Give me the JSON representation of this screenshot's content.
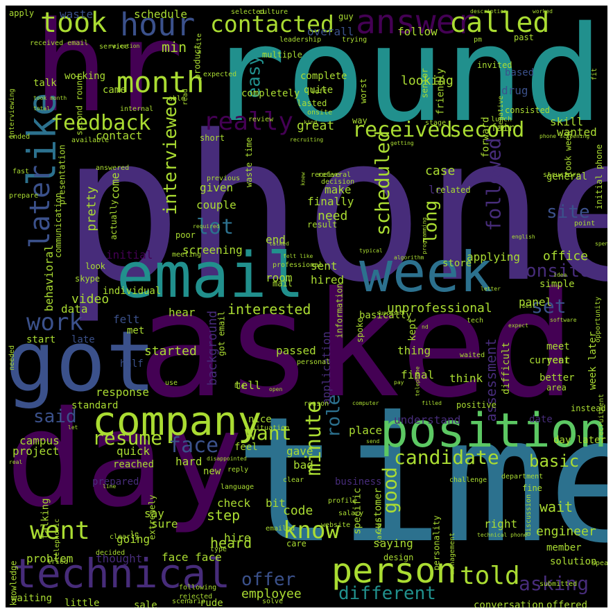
{
  "canvas": {
    "background": "#000000"
  },
  "palette": {
    "purple": "#440154",
    "violet": "#472c7a",
    "indigo": "#3b518b",
    "blue": "#2c718e",
    "teal": "#21908d",
    "green": "#27ad81",
    "lime": "#5cc863",
    "yellowgreen": "#aadc32",
    "yellow": "#fde725"
  },
  "words": [
    {
      "text": "phone",
      "color": "#472c7a"
    },
    {
      "text": "round",
      "color": "#21908d"
    },
    {
      "text": "asked",
      "color": "#440154"
    },
    {
      "text": "time",
      "color": "#2c718e"
    },
    {
      "text": "hr",
      "color": "#440154"
    },
    {
      "text": "day",
      "color": "#440154"
    },
    {
      "text": "email",
      "color": "#21908d"
    },
    {
      "text": "week",
      "color": "#2c718e"
    },
    {
      "text": "got",
      "color": "#3b518b"
    },
    {
      "text": "position",
      "color": "#5cc863"
    },
    {
      "text": "company",
      "color": "#aadc32"
    },
    {
      "text": "technical",
      "color": "#472c7a"
    },
    {
      "text": "person",
      "color": "#aadc32"
    },
    {
      "text": "answer",
      "color": "#440154"
    },
    {
      "text": "took",
      "color": "#aadc32"
    },
    {
      "text": "hour",
      "color": "#3b518b"
    },
    {
      "text": "called",
      "color": "#aadc32"
    },
    {
      "text": "contacted",
      "color": "#aadc32"
    },
    {
      "text": "month",
      "color": "#aadc32"
    },
    {
      "text": "like",
      "color": "#2c718e"
    },
    {
      "text": "later",
      "color": "#3b518b"
    },
    {
      "text": "feedback",
      "color": "#aadc32"
    },
    {
      "text": "received",
      "color": "#aadc32"
    },
    {
      "text": "second",
      "color": "#aadc32"
    },
    {
      "text": "really",
      "color": "#440154"
    },
    {
      "text": "interviewed",
      "color": "#aadc32"
    },
    {
      "text": "work",
      "color": "#3b518b"
    },
    {
      "text": "went",
      "color": "#aadc32"
    },
    {
      "text": "told",
      "color": "#aadc32"
    },
    {
      "text": "know",
      "color": "#aadc32"
    },
    {
      "text": "minute",
      "color": "#aadc32"
    },
    {
      "text": "candidate",
      "color": "#aadc32"
    },
    {
      "text": "good",
      "color": "#aadc32"
    },
    {
      "text": "different",
      "color": "#21908d"
    },
    {
      "text": "asking",
      "color": "#472c7a"
    },
    {
      "text": "said",
      "color": "#3b518b"
    },
    {
      "text": "resume",
      "color": "#aadc32"
    },
    {
      "text": "face",
      "color": "#3b518b"
    },
    {
      "text": "want",
      "color": "#aadc32"
    },
    {
      "text": "role",
      "color": "#2c718e"
    },
    {
      "text": "scheduled",
      "color": "#aadc32"
    },
    {
      "text": "followed",
      "color": "#472c7a"
    },
    {
      "text": "onsite",
      "color": "#472c7a"
    },
    {
      "text": "site",
      "color": "#3b518b"
    },
    {
      "text": "lot",
      "color": "#2c718e"
    },
    {
      "text": "set",
      "color": "#3b518b"
    },
    {
      "text": "long",
      "color": "#aadc32"
    },
    {
      "text": "offer",
      "color": "#3b518b"
    },
    {
      "text": "basic",
      "color": "#aadc32"
    },
    {
      "text": "easy",
      "color": "#21908d"
    },
    {
      "text": "min",
      "color": "#aadc32"
    },
    {
      "text": "interested",
      "color": "#aadc32"
    },
    {
      "text": "unprofessional",
      "color": "#aadc32"
    },
    {
      "text": "assessment",
      "color": "#472c7a"
    },
    {
      "text": "engineer",
      "color": "#aadc32"
    },
    {
      "text": "employee",
      "color": "#aadc32"
    },
    {
      "text": "heard",
      "color": "#aadc32"
    },
    {
      "text": "step",
      "color": "#aadc32"
    },
    {
      "text": "code",
      "color": "#aadc32"
    },
    {
      "text": "wait",
      "color": "#aadc32"
    },
    {
      "text": "waste",
      "color": "#3b518b"
    },
    {
      "text": "schedule",
      "color": "#aadc32"
    },
    {
      "text": "overall",
      "color": "#3b518b"
    },
    {
      "text": "follow",
      "color": "#aadc32"
    },
    {
      "text": "looking",
      "color": "#aadc32"
    },
    {
      "text": "based",
      "color": "#3b518b"
    },
    {
      "text": "drug",
      "color": "#3b518b"
    },
    {
      "text": "skill",
      "color": "#aadc32"
    },
    {
      "text": "wanted",
      "color": "#aadc32"
    },
    {
      "text": "contact",
      "color": "#aadc32"
    },
    {
      "text": "came",
      "color": "#aadc32"
    },
    {
      "text": "working",
      "color": "#aadc32"
    },
    {
      "text": "talk",
      "color": "#aadc32"
    },
    {
      "text": "great",
      "color": "#aadc32"
    },
    {
      "text": "case",
      "color": "#aadc32"
    },
    {
      "text": "level",
      "color": "#472c7a"
    },
    {
      "text": "general",
      "color": "#aadc32"
    },
    {
      "text": "given",
      "color": "#aadc32"
    },
    {
      "text": "couple",
      "color": "#aadc32"
    },
    {
      "text": "make",
      "color": "#aadc32"
    },
    {
      "text": "finally",
      "color": "#aadc32"
    },
    {
      "text": "need",
      "color": "#aadc32"
    },
    {
      "text": "pretty",
      "color": "#aadc32"
    },
    {
      "text": "come",
      "color": "#aadc32"
    },
    {
      "text": "end",
      "color": "#aadc32"
    },
    {
      "text": "screening",
      "color": "#aadc32"
    },
    {
      "text": "initial",
      "color": "#440154"
    },
    {
      "text": "store",
      "color": "#aadc32"
    },
    {
      "text": "applying",
      "color": "#aadc32"
    },
    {
      "text": "office",
      "color": "#aadc32"
    },
    {
      "text": "behavioral",
      "color": "#aadc32"
    },
    {
      "text": "video",
      "color": "#aadc32"
    },
    {
      "text": "sent",
      "color": "#aadc32"
    },
    {
      "text": "hired",
      "color": "#aadc32"
    },
    {
      "text": "room",
      "color": "#aadc32"
    },
    {
      "text": "hear",
      "color": "#aadc32"
    },
    {
      "text": "felt",
      "color": "#3b518b"
    },
    {
      "text": "panel",
      "color": "#aadc32"
    },
    {
      "text": "simple",
      "color": "#aadc32"
    },
    {
      "text": "data",
      "color": "#aadc32"
    },
    {
      "text": "met",
      "color": "#aadc32"
    },
    {
      "text": "start",
      "color": "#aadc32"
    },
    {
      "text": "late",
      "color": "#3b518b"
    },
    {
      "text": "started",
      "color": "#aadc32"
    },
    {
      "text": "passed",
      "color": "#aadc32"
    },
    {
      "text": "thing",
      "color": "#aadc32"
    },
    {
      "text": "difficult",
      "color": "#aadc32"
    },
    {
      "text": "meet",
      "color": "#aadc32"
    },
    {
      "text": "year",
      "color": "#aadc32"
    },
    {
      "text": "week later",
      "color": "#aadc32"
    },
    {
      "text": "better",
      "color": "#aadc32"
    },
    {
      "text": "half",
      "color": "#3b518b"
    },
    {
      "text": "tell",
      "color": "#aadc32"
    },
    {
      "text": "think",
      "color": "#aadc32"
    },
    {
      "text": "response",
      "color": "#aadc32"
    },
    {
      "text": "final",
      "color": "#aadc32"
    },
    {
      "text": "application",
      "color": "#472c7a"
    },
    {
      "text": "background",
      "color": "#472c7a"
    },
    {
      "text": "understand",
      "color": "#472c7a"
    },
    {
      "text": "date",
      "color": "#472c7a"
    },
    {
      "text": "day later",
      "color": "#aadc32"
    },
    {
      "text": "standard",
      "color": "#aadc32"
    },
    {
      "text": "campus",
      "color": "#aadc32"
    },
    {
      "text": "nice",
      "color": "#aadc32"
    },
    {
      "text": "feel",
      "color": "#aadc32"
    },
    {
      "text": "place",
      "color": "#aadc32"
    },
    {
      "text": "project",
      "color": "#aadc32"
    },
    {
      "text": "quick",
      "color": "#aadc32"
    },
    {
      "text": "reached",
      "color": "#aadc32"
    },
    {
      "text": "gave",
      "color": "#aadc32"
    },
    {
      "text": "bad",
      "color": "#aadc32"
    },
    {
      "text": "hard",
      "color": "#aadc32"
    },
    {
      "text": "new",
      "color": "#aadc32"
    },
    {
      "text": "business",
      "color": "#472c7a"
    },
    {
      "text": "prepared",
      "color": "#472c7a"
    },
    {
      "text": "talking",
      "color": "#aadc32"
    },
    {
      "text": "check",
      "color": "#aadc32"
    },
    {
      "text": "bit",
      "color": "#aadc32"
    },
    {
      "text": "specific",
      "color": "#aadc32"
    },
    {
      "text": "customer",
      "color": "#aadc32"
    },
    {
      "text": "say",
      "color": "#aadc32"
    },
    {
      "text": "sure",
      "color": "#aadc32"
    },
    {
      "text": "going",
      "color": "#aadc32"
    },
    {
      "text": "hire",
      "color": "#aadc32"
    },
    {
      "text": "saying",
      "color": "#aadc32"
    },
    {
      "text": "right",
      "color": "#aadc32"
    },
    {
      "text": "problem",
      "color": "#aadc32"
    },
    {
      "text": "thought",
      "color": "#472c7a"
    },
    {
      "text": "face face",
      "color": "#aadc32"
    },
    {
      "text": "sale",
      "color": "#aadc32"
    },
    {
      "text": "rude",
      "color": "#aadc32"
    },
    {
      "text": "little",
      "color": "#aadc32"
    },
    {
      "text": "waiting",
      "color": "#aadc32"
    },
    {
      "text": "conversation",
      "color": "#aadc32"
    },
    {
      "text": "offered",
      "color": "#aadc32"
    },
    {
      "text": "member",
      "color": "#aadc32"
    },
    {
      "text": "apply",
      "color": "#aadc32"
    },
    {
      "text": "selected",
      "color": "#aadc32"
    },
    {
      "text": "culture",
      "color": "#aadc32"
    },
    {
      "text": "worked",
      "color": "#aadc32"
    },
    {
      "text": "description",
      "color": "#aadc32"
    },
    {
      "text": "guy",
      "color": "#aadc32"
    },
    {
      "text": "product",
      "color": "#aadc32"
    },
    {
      "text": "multiple",
      "color": "#aadc32"
    },
    {
      "text": "complete",
      "color": "#aadc32"
    },
    {
      "text": "quite",
      "color": "#aadc32"
    },
    {
      "text": "senior",
      "color": "#aadc32"
    },
    {
      "text": "friendly",
      "color": "#aadc32"
    },
    {
      "text": "invited",
      "color": "#aadc32"
    },
    {
      "text": "past",
      "color": "#aadc32"
    },
    {
      "text": "forward",
      "color": "#aadc32"
    },
    {
      "text": "way",
      "color": "#aadc32"
    },
    {
      "text": "short",
      "color": "#aadc32"
    },
    {
      "text": "recruiting",
      "color": "#aadc32"
    },
    {
      "text": "completely",
      "color": "#aadc32"
    },
    {
      "text": "worst",
      "color": "#aadc32"
    },
    {
      "text": "waste time",
      "color": "#aadc32"
    },
    {
      "text": "interviewing",
      "color": "#aadc32"
    },
    {
      "text": "received email",
      "color": "#aadc32"
    },
    {
      "text": "rejection",
      "color": "#aadc32"
    },
    {
      "text": "second round",
      "color": "#aadc32"
    },
    {
      "text": "took month",
      "color": "#aadc32"
    },
    {
      "text": "total",
      "color": "#aadc32"
    },
    {
      "text": "fair",
      "color": "#aadc32"
    },
    {
      "text": "fit",
      "color": "#aadc32"
    },
    {
      "text": "phone screening",
      "color": "#aadc32"
    },
    {
      "text": "initial phone",
      "color": "#aadc32"
    },
    {
      "text": "professional",
      "color": "#aadc32"
    },
    {
      "text": "mail",
      "color": "#aadc32"
    },
    {
      "text": "look",
      "color": "#aadc32"
    },
    {
      "text": "skype",
      "color": "#aadc32"
    },
    {
      "text": "poor",
      "color": "#aadc32"
    },
    {
      "text": "meeting",
      "color": "#aadc32"
    },
    {
      "text": "presentation",
      "color": "#aadc32"
    },
    {
      "text": "communication",
      "color": "#aadc32"
    },
    {
      "text": "actually",
      "color": "#aadc32"
    },
    {
      "text": "answered",
      "color": "#aadc32"
    },
    {
      "text": "fast",
      "color": "#aadc32"
    },
    {
      "text": "prepare",
      "color": "#aadc32"
    },
    {
      "text": "receive",
      "color": "#aadc32"
    },
    {
      "text": "result",
      "color": "#aadc32"
    },
    {
      "text": "related",
      "color": "#aadc32"
    },
    {
      "text": "required",
      "color": "#aadc32"
    },
    {
      "text": "algorithm",
      "color": "#aadc32"
    },
    {
      "text": "programming",
      "color": "#aadc32"
    },
    {
      "text": "typical",
      "color": "#aadc32"
    },
    {
      "text": "talked",
      "color": "#aadc32"
    },
    {
      "text": "felt like",
      "color": "#aadc32"
    },
    {
      "text": "english",
      "color": "#aadc32"
    },
    {
      "text": "point",
      "color": "#aadc32"
    },
    {
      "text": "spent",
      "color": "#aadc32"
    },
    {
      "text": "idea",
      "color": "#aadc32"
    },
    {
      "text": "best",
      "color": "#aadc32"
    },
    {
      "text": "expect",
      "color": "#aadc32"
    },
    {
      "text": "tech",
      "color": "#aadc32"
    },
    {
      "text": "software",
      "color": "#aadc32"
    },
    {
      "text": "opportunity",
      "color": "#aadc32"
    },
    {
      "text": "basically",
      "color": "#aadc32"
    },
    {
      "text": "information",
      "color": "#aadc32"
    },
    {
      "text": "spoke",
      "color": "#aadc32"
    },
    {
      "text": "supposed",
      "color": "#aadc32"
    },
    {
      "text": "nd",
      "color": "#aadc32"
    },
    {
      "text": "kept",
      "color": "#aadc32"
    },
    {
      "text": "telephone",
      "color": "#aadc32"
    },
    {
      "text": "waited",
      "color": "#aadc32"
    },
    {
      "text": "current",
      "color": "#aadc32"
    },
    {
      "text": "positive",
      "color": "#aadc32"
    },
    {
      "text": "area",
      "color": "#aadc32"
    },
    {
      "text": "got email",
      "color": "#aadc32"
    },
    {
      "text": "personal",
      "color": "#aadc32"
    },
    {
      "text": "use",
      "color": "#aadc32"
    },
    {
      "text": "open",
      "color": "#aadc32"
    },
    {
      "text": "pay",
      "color": "#aadc32"
    },
    {
      "text": "big",
      "color": "#aadc32"
    },
    {
      "text": "reason",
      "color": "#aadc32"
    },
    {
      "text": "computer",
      "color": "#aadc32"
    },
    {
      "text": "filled",
      "color": "#aadc32"
    },
    {
      "text": "instead",
      "color": "#aadc32"
    },
    {
      "text": "recruitment",
      "color": "#aadc32"
    },
    {
      "text": "situation",
      "color": "#aadc32"
    },
    {
      "text": "send",
      "color": "#aadc32"
    },
    {
      "text": "let",
      "color": "#aadc32"
    },
    {
      "text": "real",
      "color": "#aadc32"
    },
    {
      "text": "disappointed",
      "color": "#aadc32"
    },
    {
      "text": "reply",
      "color": "#aadc32"
    },
    {
      "text": "language",
      "color": "#aadc32"
    },
    {
      "text": "clear",
      "color": "#aadc32"
    },
    {
      "text": "challenge",
      "color": "#aadc32"
    },
    {
      "text": "department",
      "color": "#aadc32"
    },
    {
      "text": "fine",
      "color": "#aadc32"
    },
    {
      "text": "extremely",
      "color": "#aadc32"
    },
    {
      "text": "line",
      "color": "#aadc32"
    },
    {
      "text": "profile",
      "color": "#aadc32"
    },
    {
      "text": "salary",
      "color": "#aadc32"
    },
    {
      "text": "website",
      "color": "#aadc32"
    },
    {
      "text": "career",
      "color": "#aadc32"
    },
    {
      "text": "personality",
      "color": "#aadc32"
    },
    {
      "text": "management",
      "color": "#aadc32"
    },
    {
      "text": "technical phone",
      "color": "#aadc32"
    },
    {
      "text": "discussion",
      "color": "#aadc32"
    },
    {
      "text": "solution",
      "color": "#aadc32"
    },
    {
      "text": "speak",
      "color": "#aadc32"
    },
    {
      "text": "submitted",
      "color": "#aadc32"
    },
    {
      "text": "solve",
      "color": "#aadc32"
    },
    {
      "text": "scenario",
      "color": "#aadc32"
    },
    {
      "text": "design",
      "color": "#aadc32"
    },
    {
      "text": "care",
      "color": "#aadc32"
    },
    {
      "text": "emailed",
      "color": "#aadc32"
    },
    {
      "text": "type",
      "color": "#aadc32"
    },
    {
      "text": "le",
      "color": "#aadc32"
    },
    {
      "text": "clearly",
      "color": "#aadc32"
    },
    {
      "text": "decided",
      "color": "#aadc32"
    },
    {
      "text": "tried",
      "color": "#aadc32"
    },
    {
      "text": "telephonic",
      "color": "#aadc32"
    },
    {
      "text": "knowledge",
      "color": "#aadc32"
    },
    {
      "text": "following",
      "color": "#aadc32"
    },
    {
      "text": "rejected",
      "color": "#aadc32"
    },
    {
      "text": "needed",
      "color": "#aadc32"
    },
    {
      "text": "review",
      "color": "#aadc32"
    },
    {
      "text": "left",
      "color": "#aadc32"
    },
    {
      "text": "lasted",
      "color": "#aadc32"
    },
    {
      "text": "onsite",
      "color": "#aadc32"
    },
    {
      "text": "kind",
      "color": "#aadc32"
    },
    {
      "text": "stage",
      "color": "#aadc32"
    },
    {
      "text": "lunch",
      "color": "#aadc32"
    },
    {
      "text": "negative",
      "color": "#aadc32"
    },
    {
      "text": "consisted",
      "color": "#aadc32"
    },
    {
      "text": "took week",
      "color": "#aadc32"
    },
    {
      "text": "getting",
      "color": "#aadc32"
    },
    {
      "text": "knew",
      "color": "#aadc32"
    },
    {
      "text": "previous",
      "color": "#aadc32"
    },
    {
      "text": "referral",
      "color": "#aadc32"
    },
    {
      "text": "decision",
      "color": "#aadc32"
    },
    {
      "text": "structure",
      "color": "#aadc32"
    },
    {
      "text": "ended",
      "color": "#aadc32"
    },
    {
      "text": "available",
      "color": "#aadc32"
    },
    {
      "text": "internal",
      "color": "#aadc32"
    },
    {
      "text": "able",
      "color": "#aadc32"
    },
    {
      "text": "read",
      "color": "#aadc32"
    },
    {
      "text": "write",
      "color": "#aadc32"
    },
    {
      "text": "expected",
      "color": "#aadc32"
    },
    {
      "text": "leadership",
      "color": "#aadc32"
    },
    {
      "text": "trying",
      "color": "#aadc32"
    },
    {
      "text": "pm",
      "color": "#aadc32"
    },
    {
      "text": "service",
      "color": "#aadc32"
    },
    {
      "text": "letter",
      "color": "#aadc32"
    },
    {
      "text": "individual",
      "color": "#aadc32"
    },
    {
      "text": "number",
      "color": "#aadc32"
    },
    {
      "text": "happened",
      "color": "#aadc32"
    },
    {
      "text": "pas",
      "color": "#aadc32"
    }
  ]
}
